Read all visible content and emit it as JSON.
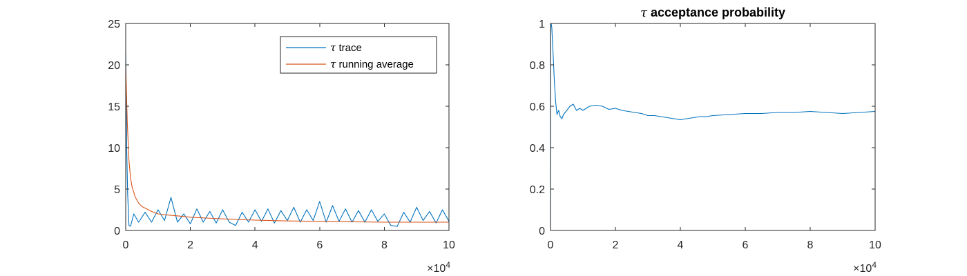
{
  "colors": {
    "trace": "#0072bd",
    "average": "#d95319",
    "axis": "#262626"
  },
  "chart_data": [
    {
      "type": "line",
      "title": "",
      "xlabel": "",
      "ylabel": "",
      "xlim": [
        0,
        100000
      ],
      "ylim": [
        0,
        25
      ],
      "x_exponent_label": "×10",
      "x_exponent_power": "4",
      "xticks": [
        0,
        20000,
        40000,
        60000,
        80000,
        100000
      ],
      "xtick_labels": [
        "0",
        "2",
        "4",
        "6",
        "8",
        "10"
      ],
      "yticks": [
        0,
        5,
        10,
        15,
        20,
        25
      ],
      "ytick_labels": [
        "0",
        "5",
        "10",
        "15",
        "20",
        "25"
      ],
      "legend_position": "top-right",
      "grid": false,
      "series": [
        {
          "name": "trace",
          "greek": "τ",
          "color": "#0072bd",
          "x": [
            0,
            300,
            600,
            1000,
            1500,
            2500,
            4000,
            6000,
            8000,
            10000,
            12000,
            14000,
            16000,
            18000,
            20000,
            22000,
            24000,
            26000,
            28000,
            30000,
            32000,
            34000,
            36000,
            38000,
            40000,
            42000,
            44000,
            46000,
            48000,
            50000,
            52000,
            54000,
            56000,
            58000,
            60000,
            62000,
            64000,
            66000,
            68000,
            70000,
            72000,
            74000,
            76000,
            78000,
            80000,
            82000,
            84000,
            86000,
            88000,
            90000,
            92000,
            94000,
            96000,
            98000,
            100000
          ],
          "y": [
            21.5,
            10.0,
            4.5,
            0.6,
            0.5,
            2.0,
            1.0,
            2.2,
            1.0,
            2.5,
            1.2,
            4.0,
            1.0,
            2.0,
            0.8,
            2.6,
            1.0,
            2.3,
            0.9,
            2.5,
            1.0,
            0.6,
            2.2,
            1.0,
            2.5,
            1.1,
            2.6,
            0.9,
            2.4,
            1.2,
            2.8,
            1.0,
            2.5,
            1.2,
            3.5,
            1.0,
            3.0,
            1.1,
            2.6,
            1.0,
            2.4,
            1.0,
            2.5,
            1.1,
            2.0,
            0.6,
            0.5,
            2.2,
            1.0,
            2.8,
            1.2,
            2.3,
            0.9,
            2.5,
            1.1
          ]
        },
        {
          "name": "running average",
          "greek": "τ",
          "color": "#d95319",
          "x": [
            0,
            500,
            1000,
            1500,
            2000,
            3000,
            4000,
            5000,
            6000,
            8000,
            10000,
            12000,
            15000,
            20000,
            25000,
            30000,
            40000,
            50000,
            60000,
            70000,
            80000,
            90000,
            100000
          ],
          "y": [
            20.0,
            13.0,
            8.5,
            6.3,
            5.2,
            4.0,
            3.3,
            2.9,
            2.7,
            2.3,
            2.0,
            1.9,
            1.8,
            1.6,
            1.5,
            1.4,
            1.25,
            1.15,
            1.1,
            1.05,
            1.0,
            1.0,
            1.0
          ]
        }
      ]
    },
    {
      "type": "line",
      "title": "acceptance probability",
      "title_greek": "τ",
      "xlabel": "",
      "ylabel": "",
      "xlim": [
        0,
        100000
      ],
      "ylim": [
        0,
        1
      ],
      "x_exponent_label": "×10",
      "x_exponent_power": "4",
      "xticks": [
        0,
        20000,
        40000,
        60000,
        80000,
        100000
      ],
      "xtick_labels": [
        "0",
        "2",
        "4",
        "6",
        "8",
        "10"
      ],
      "yticks": [
        0,
        0.2,
        0.4,
        0.6,
        0.8,
        1.0
      ],
      "ytick_labels": [
        "0",
        "0.2",
        "0.4",
        "0.6",
        "0.8",
        "1"
      ],
      "grid": false,
      "series": [
        {
          "color": "#0072bd",
          "x": [
            0,
            50,
            100,
            200,
            400,
            800,
            1200,
            1600,
            2000,
            2500,
            3000,
            3500,
            4000,
            5000,
            6000,
            7000,
            8000,
            9000,
            10000,
            12000,
            14000,
            16000,
            18000,
            20000,
            22000,
            24000,
            26000,
            28000,
            30000,
            32000,
            34000,
            36000,
            38000,
            40000,
            42000,
            44000,
            46000,
            48000,
            50000,
            55000,
            60000,
            65000,
            70000,
            75000,
            80000,
            85000,
            90000,
            95000,
            100000
          ],
          "y": [
            0.0,
            1.0,
            1.0,
            1.0,
            0.98,
            0.85,
            0.72,
            0.62,
            0.56,
            0.58,
            0.55,
            0.54,
            0.56,
            0.58,
            0.6,
            0.61,
            0.58,
            0.59,
            0.58,
            0.6,
            0.605,
            0.6,
            0.585,
            0.59,
            0.58,
            0.575,
            0.57,
            0.565,
            0.555,
            0.555,
            0.55,
            0.545,
            0.54,
            0.535,
            0.54,
            0.545,
            0.55,
            0.55,
            0.555,
            0.56,
            0.565,
            0.565,
            0.57,
            0.57,
            0.575,
            0.57,
            0.565,
            0.57,
            0.575
          ]
        }
      ]
    }
  ]
}
